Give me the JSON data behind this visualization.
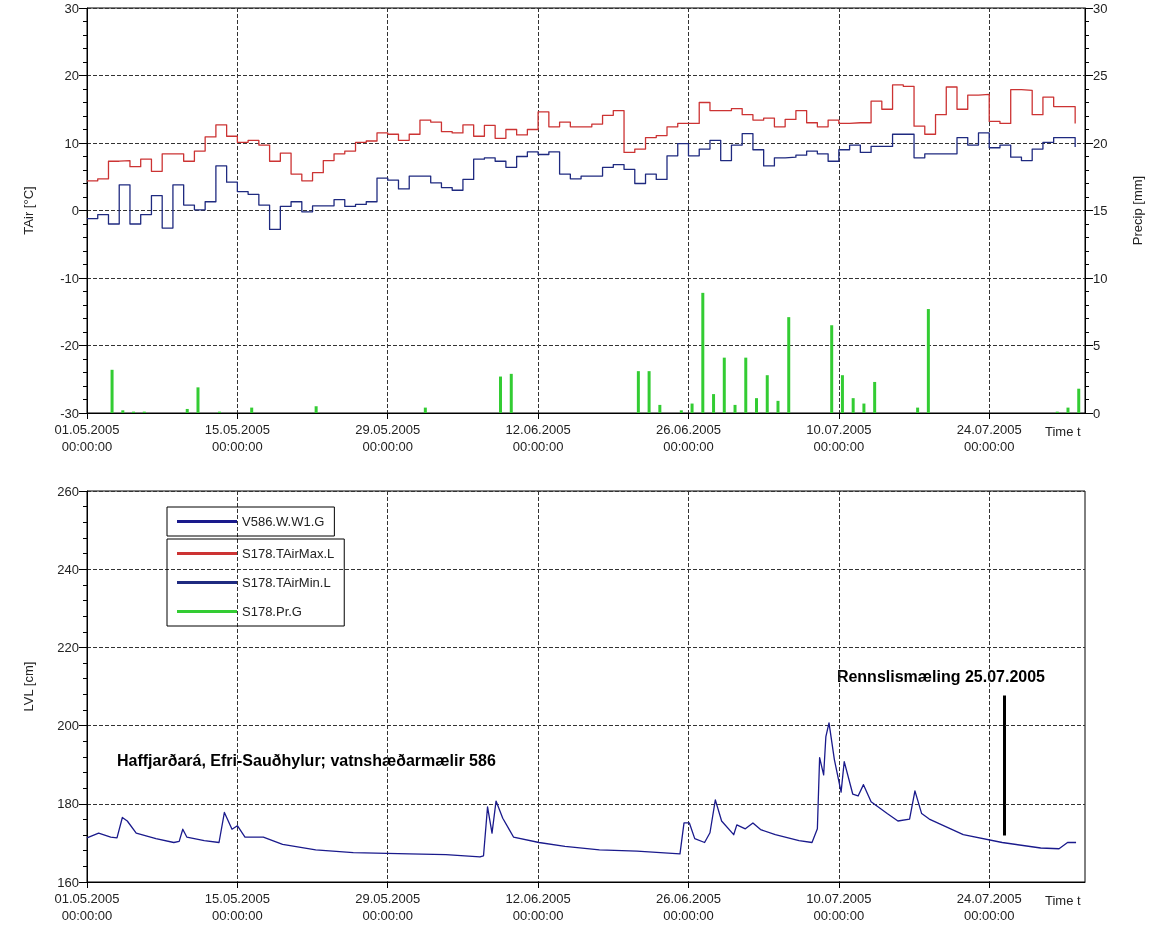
{
  "chart_data": [
    {
      "type": "step",
      "xlabel": "Time t",
      "ylabel": "TAir [°C]",
      "y2label": "Precip [mm]",
      "grid": true,
      "legend": "bottom left",
      "x": [
        "2005-05-01",
        "2005-05-02",
        "2005-05-03",
        "2005-05-04",
        "2005-05-05",
        "2005-05-06",
        "2005-05-07",
        "2005-05-08",
        "2005-05-09",
        "2005-05-10",
        "2005-05-11",
        "2005-05-12",
        "2005-05-13",
        "2005-05-14",
        "2005-05-15",
        "2005-05-16",
        "2005-05-17",
        "2005-05-18",
        "2005-05-19",
        "2005-05-20",
        "2005-05-21",
        "2005-05-22",
        "2005-05-23",
        "2005-05-24",
        "2005-05-25",
        "2005-05-26",
        "2005-05-27",
        "2005-05-28",
        "2005-05-29",
        "2005-05-30",
        "2005-05-31",
        "2005-06-01",
        "2005-06-02",
        "2005-06-03",
        "2005-06-04",
        "2005-06-05",
        "2005-06-06",
        "2005-06-07",
        "2005-06-08",
        "2005-06-09",
        "2005-06-10",
        "2005-06-11",
        "2005-06-12",
        "2005-06-13",
        "2005-06-14",
        "2005-06-15",
        "2005-06-16",
        "2005-06-17",
        "2005-06-18",
        "2005-06-19",
        "2005-06-20",
        "2005-06-21",
        "2005-06-22",
        "2005-06-23",
        "2005-06-24",
        "2005-06-25",
        "2005-06-26",
        "2005-06-27",
        "2005-06-28",
        "2005-06-29",
        "2005-06-30",
        "2005-07-01",
        "2005-07-02",
        "2005-07-03",
        "2005-07-04",
        "2005-07-05",
        "2005-07-06",
        "2005-07-07",
        "2005-07-08",
        "2005-07-09",
        "2005-07-10",
        "2005-07-11",
        "2005-07-12",
        "2005-07-13",
        "2005-07-14",
        "2005-07-15",
        "2005-07-16",
        "2005-07-17",
        "2005-07-18",
        "2005-07-19",
        "2005-07-20",
        "2005-07-21",
        "2005-07-22",
        "2005-07-23",
        "2005-07-24",
        "2005-07-25",
        "2005-07-26",
        "2005-07-27",
        "2005-07-28",
        "2005-07-29",
        "2005-07-30",
        "2005-07-31",
        "2005-08-01"
      ],
      "series": [
        {
          "name": "S178.TAirMax.L",
          "color": "#cc3333",
          "values": [
            4.4,
            4.7,
            7.3,
            7.4,
            6.5,
            7.6,
            5.8,
            8.4,
            8.4,
            7.3,
            8.8,
            10.9,
            12.7,
            11.0,
            10.1,
            10.4,
            9.7,
            7.3,
            8.5,
            5.4,
            4.4,
            5.6,
            7.4,
            8.4,
            8.8,
            10.1,
            10.3,
            11.5,
            11.3,
            10.4,
            11.3,
            13.4,
            13.1,
            11.7,
            11.5,
            12.7,
            11.0,
            12.6,
            10.7,
            12.0,
            11.2,
            12.0,
            14.6,
            12.4,
            13.1,
            12.4,
            12.4,
            12.8,
            14.1,
            14.8,
            8.6,
            9.1,
            10.8,
            11.1,
            12.4,
            12.9,
            12.9,
            16.0,
            14.8,
            14.8,
            15.1,
            14.2,
            13.4,
            13.7,
            12.4,
            13.5,
            14.8,
            13.0,
            12.4,
            13.4,
            12.9,
            13.0,
            13.0,
            16.2,
            15.0,
            18.6,
            18.4,
            12.5,
            11.3,
            14.2,
            18.3,
            15.0,
            17.1,
            17.2,
            13.2,
            12.9,
            17.9,
            17.8,
            14.2,
            16.8,
            15.4,
            15.4,
            12.9
          ]
        },
        {
          "name": "S178.TAirMin.L",
          "color": "#1f2a80",
          "values": [
            -1.2,
            -0.6,
            -2.0,
            3.8,
            -2.0,
            -0.6,
            2.2,
            -2.6,
            3.8,
            0.8,
            0.1,
            1.3,
            6.6,
            4.2,
            2.8,
            2.4,
            0.8,
            -2.8,
            0.6,
            1.3,
            -0.2,
            0.7,
            0.7,
            1.6,
            0.6,
            0.9,
            1.3,
            4.8,
            4.5,
            3.2,
            5.1,
            5.1,
            4.1,
            3.4,
            3.0,
            4.6,
            7.6,
            7.8,
            7.3,
            6.4,
            8.0,
            8.7,
            8.3,
            8.7,
            5.4,
            4.7,
            5.1,
            5.1,
            6.4,
            6.8,
            6.1,
            4.0,
            5.4,
            4.6,
            8.1,
            9.9,
            8.1,
            9.1,
            10.4,
            7.4,
            9.7,
            11.4,
            9.0,
            6.6,
            7.8,
            7.9,
            8.2,
            8.8,
            8.4,
            7.3,
            9.0,
            9.7,
            8.6,
            9.5,
            9.5,
            11.3,
            11.3,
            7.8,
            8.4,
            8.4,
            8.4,
            10.8,
            9.7,
            11.5,
            9.3,
            9.7,
            7.9,
            7.4,
            9.1,
            10.1,
            10.8,
            10.8,
            9.4
          ]
        },
        {
          "name": "S178.Pr.G",
          "type": "bar",
          "axis": "y2",
          "color": "#33cc33",
          "x": [
            "2005-05-03T08:00",
            "2005-05-04T08:00",
            "2005-05-05T08:00",
            "2005-05-06T08:00",
            "2005-05-10T08:00",
            "2005-05-11T08:00",
            "2005-05-13T08:00",
            "2005-05-16T08:00",
            "2005-05-22T08:00",
            "2005-06-01T12:00",
            "2005-06-08T12:00",
            "2005-06-09T12:00",
            "2005-06-21T08:00",
            "2005-06-22T08:00",
            "2005-06-23T08:00",
            "2005-06-25T08:00",
            "2005-06-26T08:00",
            "2005-06-27T08:00",
            "2005-06-28T08:00",
            "2005-06-29T08:00",
            "2005-06-30T08:00",
            "2005-07-01T08:00",
            "2005-07-02T08:00",
            "2005-07-03T08:00",
            "2005-07-04T08:00",
            "2005-07-05T08:00",
            "2005-07-09T08:00",
            "2005-07-10T08:00",
            "2005-07-11T08:00",
            "2005-07-12T08:00",
            "2005-07-13T08:00",
            "2005-07-17T08:00",
            "2005-07-18T08:00",
            "2005-07-30T08:00",
            "2005-07-31T08:00",
            "2005-08-01T08:00"
          ],
          "values": [
            3.2,
            0.2,
            0.1,
            0.1,
            0.3,
            1.9,
            0.1,
            0.4,
            0.5,
            0.4,
            2.7,
            2.9,
            3.1,
            3.1,
            0.6,
            0.2,
            0.7,
            8.9,
            1.4,
            4.1,
            0.6,
            4.1,
            1.1,
            2.8,
            0.9,
            7.1,
            6.5,
            2.8,
            1.1,
            0.7,
            2.3,
            0.4,
            7.7,
            0.1,
            0.4,
            1.8
          ]
        }
      ],
      "xlim": [
        "2005-05-01",
        "2005-08-01T22:00"
      ],
      "xticks": [
        {
          "value": "2005-05-01",
          "label": "01.05.2005\n00:00:00"
        },
        {
          "value": "2005-05-15",
          "label": "15.05.2005\n00:00:00"
        },
        {
          "value": "2005-05-29",
          "label": "29.05.2005\n00:00:00"
        },
        {
          "value": "2005-06-12",
          "label": "12.06.2005\n00:00:00"
        },
        {
          "value": "2005-06-26",
          "label": "26.06.2005\n00:00:00"
        },
        {
          "value": "2005-07-10",
          "label": "10.07.2005\n00:00:00"
        },
        {
          "value": "2005-07-24",
          "label": "24.07.2005\n00:00:00"
        }
      ],
      "ylim": [
        -30,
        30
      ],
      "yticks": [
        -30,
        -20,
        -10,
        0,
        10,
        20,
        30
      ],
      "y2lim": [
        0,
        30
      ],
      "y2ticks": [
        0,
        5,
        10,
        15,
        20,
        25,
        30
      ]
    },
    {
      "type": "line",
      "xlabel": "Time t",
      "ylabel": "LVL [cm]",
      "grid": true,
      "legend": "top left",
      "series": [
        {
          "name": "V586.W.W1.G",
          "color": "#1a1a8c",
          "x": [
            "2005-05-01T00:00",
            "2005-05-02T02:00",
            "2005-05-03T05:00",
            "2005-05-03T19:00",
            "2005-05-04T07:00",
            "2005-05-04T18:00",
            "2005-05-05T14:00",
            "2005-05-07T10:00",
            "2005-05-09T02:00",
            "2005-05-09T14:00",
            "2005-05-09T22:00",
            "2005-05-10T07:00",
            "2005-05-11T22:00",
            "2005-05-13T07:00",
            "2005-05-13T19:00",
            "2005-05-14T12:00",
            "2005-05-15T00:00",
            "2005-05-15T17:00",
            "2005-05-17T10:00",
            "2005-05-19T05:00",
            "2005-05-22T07:00",
            "2005-05-25T19:00",
            "2005-05-31T00:00",
            "2005-06-03T10:00",
            "2005-06-06T14:00",
            "2005-06-06T22:00",
            "2005-06-07T07:00",
            "2005-06-07T17:00",
            "2005-06-08T02:00",
            "2005-06-08T17:00",
            "2005-06-09T17:00",
            "2005-06-12T02:00",
            "2005-06-14T12:00",
            "2005-06-17T17:00",
            "2005-06-21T05:00",
            "2005-06-25T05:00",
            "2005-06-25T14:00",
            "2005-06-26T02:00",
            "2005-06-26T14:00",
            "2005-06-27T12:00",
            "2005-06-28T00:00",
            "2005-06-28T12:00",
            "2005-06-29T02:00",
            "2005-06-30T05:00",
            "2005-06-30T12:00",
            "2005-07-01T07:00",
            "2005-07-02T00:00",
            "2005-07-02T17:00",
            "2005-07-04T02:00",
            "2005-07-06T07:00",
            "2005-07-07T12:00",
            "2005-07-08T00:00",
            "2005-07-08T05:00",
            "2005-07-08T14:00",
            "2005-07-08T19:00",
            "2005-07-09T02:00",
            "2005-07-09T14:00",
            "2005-07-10T05:00",
            "2005-07-10T12:00",
            "2005-07-11T07:00",
            "2005-07-11T19:00",
            "2005-07-12T07:00",
            "2005-07-13T00:00",
            "2005-07-14T12:00",
            "2005-07-15T12:00",
            "2005-07-16T14:00",
            "2005-07-17T02:00",
            "2005-07-17T17:00",
            "2005-07-18T10:00",
            "2005-07-21T14:00",
            "2005-07-25T05:00",
            "2005-07-28T19:00",
            "2005-07-30T12:00",
            "2005-07-31T07:00",
            "2005-08-01T02:00"
          ],
          "values": [
            171.3,
            172.5,
            171.5,
            171.3,
            176.5,
            175.6,
            172.5,
            171.1,
            170.1,
            170.4,
            173.5,
            171.5,
            170.6,
            170.1,
            177.8,
            173.5,
            174.4,
            171.5,
            171.5,
            169.6,
            168.2,
            167.5,
            167.2,
            167.0,
            166.4,
            166.7,
            179.2,
            172.5,
            180.7,
            176.3,
            171.5,
            170.1,
            169.1,
            168.2,
            167.9,
            167.2,
            175.1,
            175.1,
            171.1,
            170.1,
            172.6,
            181.0,
            175.6,
            172.1,
            174.6,
            173.6,
            175.1,
            173.4,
            172.1,
            170.6,
            170.1,
            173.6,
            191.8,
            187.4,
            197.2,
            200.7,
            191.3,
            183.0,
            190.8,
            182.5,
            182.0,
            184.9,
            180.5,
            177.5,
            175.6,
            176.1,
            183.3,
            177.5,
            176.1,
            172.1,
            170.1,
            168.7,
            168.5,
            170.1,
            170.1
          ]
        }
      ],
      "xlim": [
        "2005-05-01",
        "2005-08-01T22:00"
      ],
      "xticks": [
        {
          "value": "2005-05-01",
          "label": "01.05.2005\n00:00:00"
        },
        {
          "value": "2005-05-15",
          "label": "15.05.2005\n00:00:00"
        },
        {
          "value": "2005-05-29",
          "label": "29.05.2005\n00:00:00"
        },
        {
          "value": "2005-06-12",
          "label": "12.06.2005\n00:00:00"
        },
        {
          "value": "2005-06-26",
          "label": "26.06.2005\n00:00:00"
        },
        {
          "value": "2005-07-10",
          "label": "10.07.2005\n00:00:00"
        },
        {
          "value": "2005-07-24",
          "label": "24.07.2005\n00:00:00"
        }
      ],
      "ylim": [
        160,
        260
      ],
      "yticks": [
        160,
        180,
        200,
        220,
        240,
        260
      ],
      "annotations": [
        "Haffjarðará, Efri-Sauðhylur; vatnshæðarmælir 586",
        "Rennslismæling 25.07.2005"
      ]
    }
  ]
}
